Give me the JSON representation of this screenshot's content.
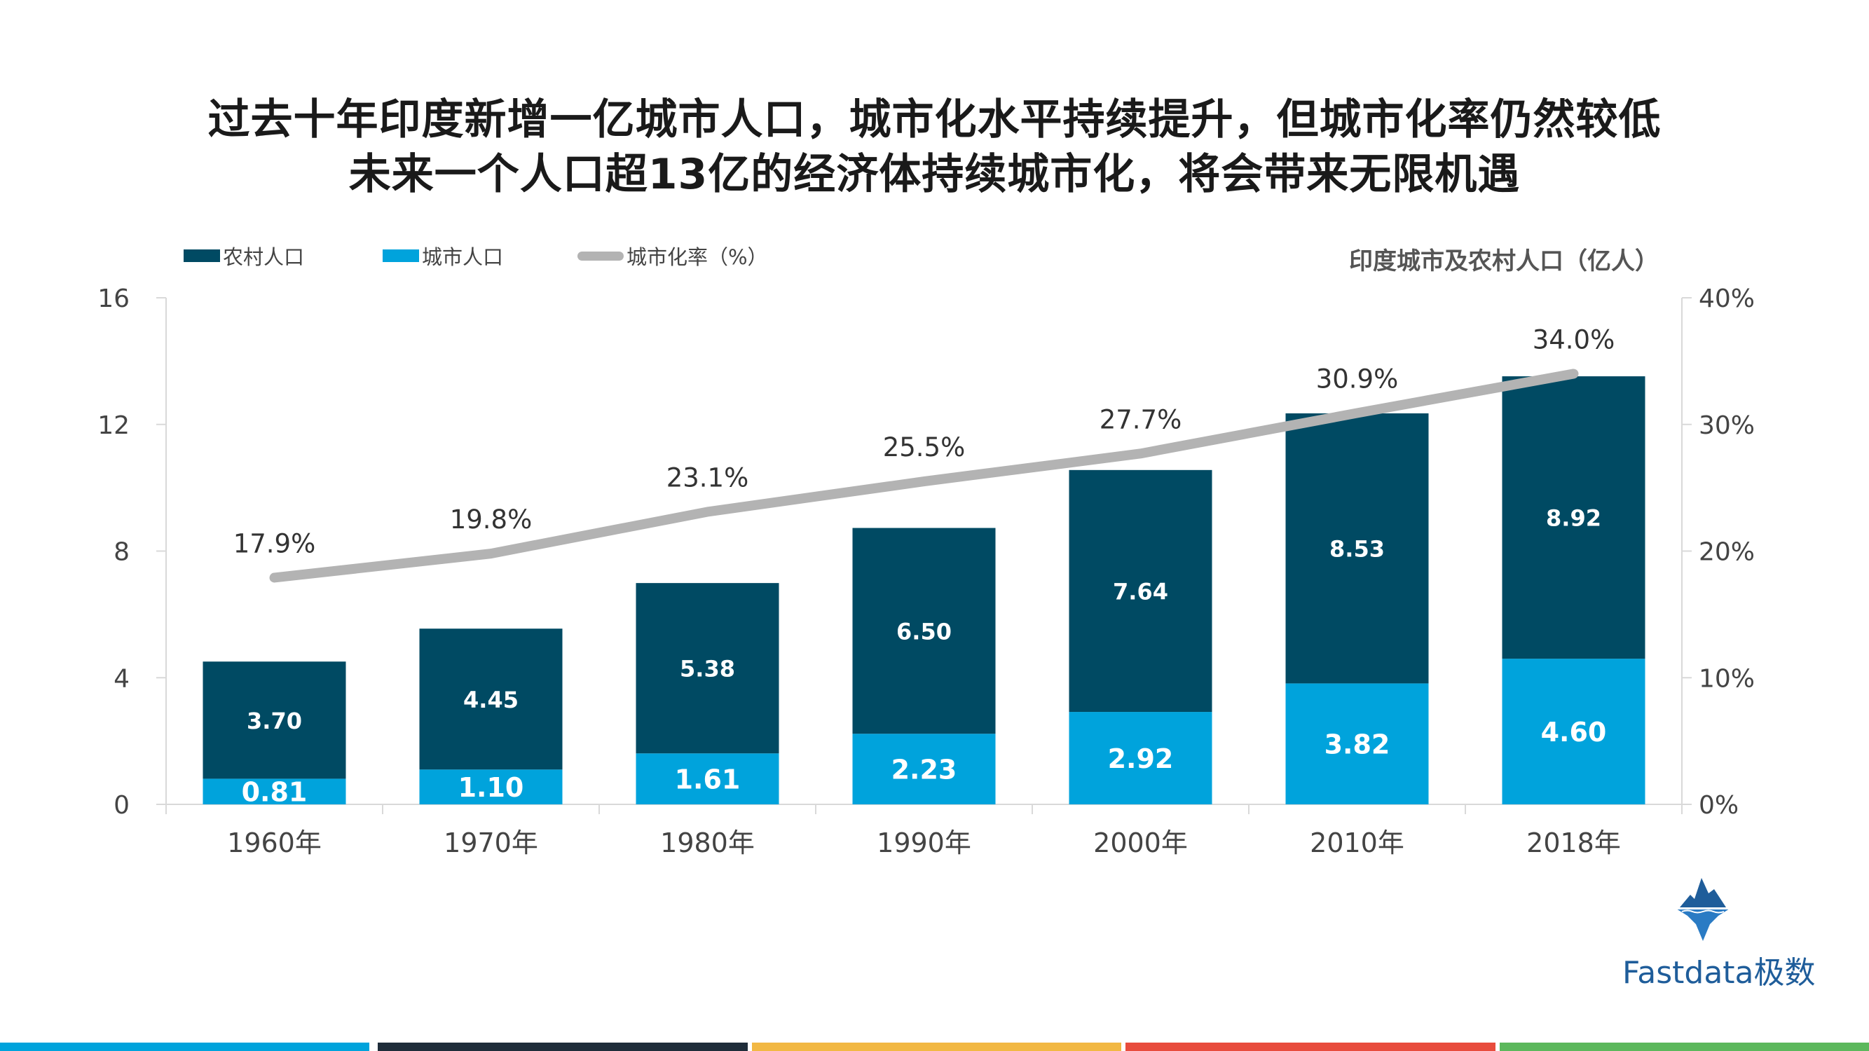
{
  "header": {
    "title_line1": "过去十年印度新增一亿城市人口，城市化水平持续提升，但城市化率仍然较低",
    "title_line2": "未来一个人口超13亿的经济体持续城市化，将会带来无限机遇"
  },
  "legend": {
    "rural": "农村人口",
    "urban": "城市人口",
    "rate": "城市化率（%）"
  },
  "unit_label": "印度城市及农村人口（亿人）",
  "colors": {
    "rural": "#004a63",
    "urban": "#00a3dc",
    "rate": "#b3b3b3"
  },
  "chart_data": {
    "type": "bar",
    "stacked": true,
    "categories": [
      "1960年",
      "1970年",
      "1980年",
      "1990年",
      "2000年",
      "2010年",
      "2018年"
    ],
    "series": [
      {
        "name": "城市人口",
        "values": [
          0.81,
          1.1,
          1.61,
          2.23,
          2.92,
          3.82,
          4.6
        ]
      },
      {
        "name": "农村人口",
        "values": [
          3.7,
          4.45,
          5.38,
          6.5,
          7.64,
          8.53,
          8.92
        ]
      }
    ],
    "secondary_series": {
      "name": "城市化率（%）",
      "type": "line",
      "values": [
        17.9,
        19.8,
        23.1,
        25.5,
        27.7,
        30.9,
        34.0
      ],
      "labels": [
        "17.9%",
        "19.8%",
        "23.1%",
        "25.5%",
        "27.7%",
        "30.9%",
        "34.0%"
      ]
    },
    "ylim": [
      0,
      16
    ],
    "yticks": [
      "0",
      "4",
      "8",
      "12",
      "16"
    ],
    "y2lim": [
      0,
      40
    ],
    "y2ticks": [
      "0%",
      "10%",
      "20%",
      "30%",
      "40%"
    ],
    "legend_position": "top-left"
  },
  "brand": {
    "name": "Fastdata极数"
  },
  "footer_colors": [
    "#00a3dc",
    "#1f2d3a",
    "#f2b843",
    "#e84c3d",
    "#5cb85c"
  ]
}
